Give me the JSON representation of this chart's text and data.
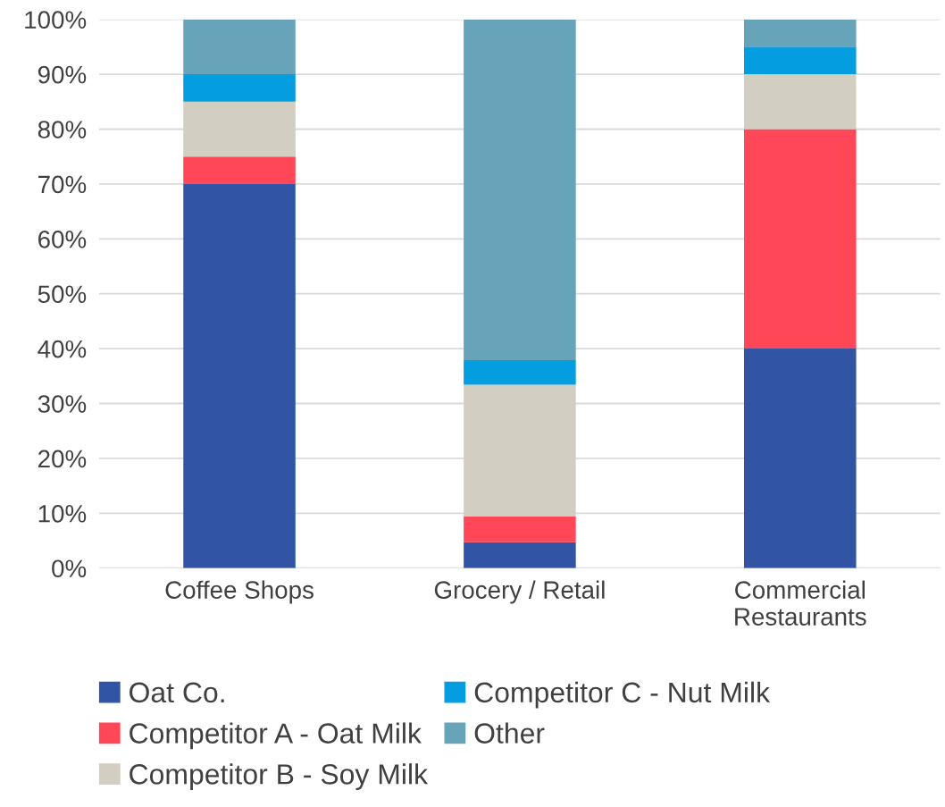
{
  "chart_data": {
    "type": "bar",
    "stacked": true,
    "categories": [
      "Coffee Shops",
      "Grocery / Retail",
      "Commercial\nRestaurants"
    ],
    "series": [
      {
        "name": "Oat Co.",
        "color": "#3155a4",
        "values": [
          70,
          4.7,
          40
        ]
      },
      {
        "name": "Competitor A - Oat Milk",
        "color": "#ff4757",
        "values": [
          5,
          4.7,
          40
        ]
      },
      {
        "name": "Competitor B - Soy Milk",
        "color": "#d3cec2",
        "values": [
          10,
          24,
          10
        ]
      },
      {
        "name": "Competitor C - Nut Milk",
        "color": "#049ddf",
        "values": [
          5,
          4.5,
          5
        ]
      },
      {
        "name": "Other",
        "color": "#68a4b9",
        "values": [
          10,
          62.1,
          5
        ]
      }
    ],
    "ylim": [
      0,
      100
    ],
    "yticks": [
      {
        "value": 0,
        "label": "0%"
      },
      {
        "value": 10,
        "label": "10%"
      },
      {
        "value": 20,
        "label": "20%"
      },
      {
        "value": 30,
        "label": "30%"
      },
      {
        "value": 40,
        "label": "40%"
      },
      {
        "value": 50,
        "label": "50%"
      },
      {
        "value": 60,
        "label": "60%"
      },
      {
        "value": 70,
        "label": "70%"
      },
      {
        "value": 80,
        "label": "80%"
      },
      {
        "value": 90,
        "label": "90%"
      },
      {
        "value": 100,
        "label": "100%"
      }
    ],
    "grid": "y",
    "legend": "bottom"
  }
}
